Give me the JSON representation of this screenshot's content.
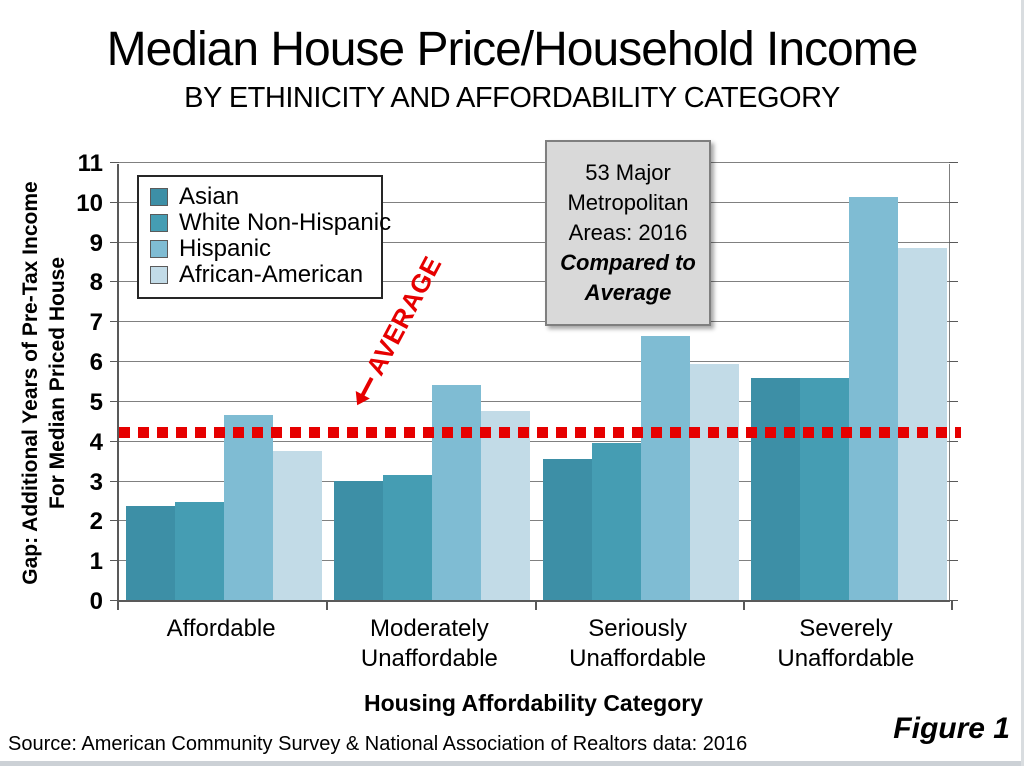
{
  "title": "Median House Price/Household Income",
  "subtitle": "BY ETHINICITY AND AFFORDABILITY CATEGORY",
  "info_box": {
    "plain": "53 Major Metropolitan Areas: 2016",
    "emphasis": "Compared to Average"
  },
  "average_label": "AVERAGE",
  "chart_data": {
    "type": "bar",
    "title": "Median House Price/Household Income by Ethnicity and Affordability Category",
    "categories": [
      "Affordable",
      "Moderately Unaffordable",
      "Seriously Unaffordable",
      "Severely Unaffordable"
    ],
    "series": [
      {
        "name": "Asian",
        "color": "#3d8fa6",
        "values": [
          2.37,
          3.0,
          3.55,
          5.58
        ]
      },
      {
        "name": "White Non-Hispanic",
        "color": "#459db3",
        "values": [
          2.46,
          3.15,
          3.95,
          5.58
        ]
      },
      {
        "name": "Hispanic",
        "color": "#7fbcd3",
        "values": [
          4.65,
          5.4,
          6.63,
          10.12
        ]
      },
      {
        "name": "African-American",
        "color": "#c2dbe7",
        "values": [
          3.75,
          4.75,
          5.93,
          8.85
        ]
      }
    ],
    "average_line_value": 4.27,
    "average_line_color": "#e60000",
    "ylim": [
      0,
      11
    ],
    "yticks": [
      0,
      1,
      2,
      3,
      4,
      5,
      6,
      7,
      8,
      9,
      10,
      11
    ],
    "grid": "horizontal",
    "legend_position": "top-left",
    "xlabel": "Housing Affordability Category",
    "ylabel_line1": "Gap: Additional Years of Pre-Tax Income",
    "ylabel_line2": "For Median Priced House"
  },
  "footer": {
    "source": "Source: American Community Survey & National Association of Realtors data: 2016",
    "figure": "Figure 1"
  }
}
